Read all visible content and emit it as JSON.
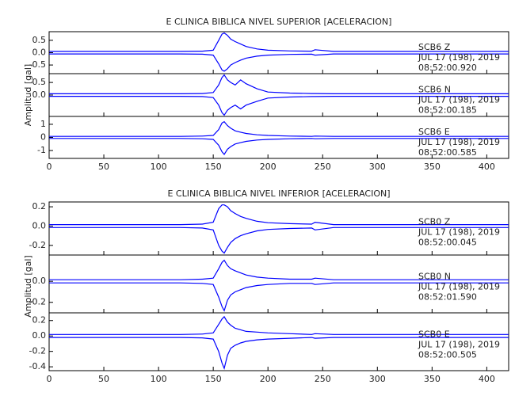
{
  "chart_data": [
    {
      "type": "seismogram",
      "title": "E CLINICA BIBLICA NIVEL SUPERIOR [ACELERACION]",
      "ylabel": "Amplitud [gal]",
      "xlim": [
        0,
        420
      ],
      "xticks": [
        0,
        50,
        100,
        150,
        200,
        250,
        300,
        350,
        400
      ],
      "panels": [
        {
          "station": "SCB6   Z",
          "date": "JUL 17 (198), 2019",
          "time": "08:52:00.920",
          "color": "#0000ff",
          "ylim": [
            -0.85,
            0.85
          ],
          "yticks": [
            0.5,
            {
              "value": 0,
              "label": "0.0"
            },
            -0.5
          ],
          "x": [
            0,
            20,
            40,
            60,
            80,
            100,
            120,
            140,
            150,
            155,
            158,
            160,
            163,
            166,
            170,
            175,
            180,
            190,
            200,
            220,
            240,
            243,
            260,
            300,
            340,
            380,
            420
          ],
          "max": [
            0.05,
            0.05,
            0.05,
            0.05,
            0.05,
            0.05,
            0.05,
            0.06,
            0.1,
            0.5,
            0.75,
            0.8,
            0.7,
            0.55,
            0.45,
            0.35,
            0.25,
            0.15,
            0.1,
            0.07,
            0.06,
            0.12,
            0.05,
            0.05,
            0.05,
            0.05,
            0.05
          ],
          "min": [
            -0.05,
            -0.05,
            -0.05,
            -0.05,
            -0.05,
            -0.05,
            -0.05,
            -0.06,
            -0.1,
            -0.45,
            -0.7,
            -0.75,
            -0.65,
            -0.5,
            -0.4,
            -0.3,
            -0.22,
            -0.14,
            -0.1,
            -0.07,
            -0.06,
            -0.1,
            -0.05,
            -0.05,
            -0.05,
            -0.05,
            -0.05
          ]
        },
        {
          "station": "SCB6   N",
          "date": "JUL 17 (198), 2019",
          "time": "08:52:00.185",
          "color": "#0000ff",
          "ylim": [
            -0.85,
            0.85
          ],
          "yticks": [
            0.5,
            {
              "value": 0,
              "label": "0.0"
            }
          ],
          "x": [
            0,
            20,
            40,
            60,
            80,
            100,
            120,
            140,
            150,
            155,
            158,
            160,
            163,
            166,
            170,
            175,
            180,
            190,
            200,
            220,
            240,
            243,
            260,
            300,
            340,
            380,
            420
          ],
          "max": [
            0.05,
            0.05,
            0.05,
            0.05,
            0.05,
            0.05,
            0.05,
            0.06,
            0.1,
            0.4,
            0.7,
            0.8,
            0.6,
            0.5,
            0.4,
            0.6,
            0.45,
            0.25,
            0.12,
            0.08,
            0.06,
            0.06,
            0.05,
            0.05,
            0.05,
            0.05,
            0.05
          ],
          "min": [
            -0.05,
            -0.05,
            -0.05,
            -0.05,
            -0.05,
            -0.05,
            -0.05,
            -0.06,
            -0.1,
            -0.4,
            -0.7,
            -0.8,
            -0.6,
            -0.5,
            -0.4,
            -0.55,
            -0.4,
            -0.25,
            -0.12,
            -0.08,
            -0.06,
            -0.06,
            -0.05,
            -0.05,
            -0.05,
            -0.05,
            -0.05
          ]
        },
        {
          "station": "SCB6   E",
          "date": "JUL 17 (198), 2019",
          "time": "08:52:00.585",
          "color": "#0000ff",
          "ylim": [
            -1.6,
            1.6
          ],
          "yticks": [
            1,
            0,
            -1
          ],
          "x": [
            0,
            20,
            40,
            60,
            80,
            100,
            120,
            140,
            150,
            155,
            158,
            160,
            163,
            166,
            170,
            175,
            180,
            190,
            200,
            220,
            240,
            243,
            260,
            300,
            340,
            380,
            420
          ],
          "max": [
            0.08,
            0.08,
            0.08,
            0.08,
            0.08,
            0.08,
            0.08,
            0.1,
            0.15,
            0.6,
            1.1,
            1.2,
            0.9,
            0.7,
            0.5,
            0.4,
            0.3,
            0.2,
            0.15,
            0.1,
            0.08,
            0.1,
            0.08,
            0.08,
            0.08,
            0.08,
            0.08
          ],
          "min": [
            -0.08,
            -0.08,
            -0.08,
            -0.08,
            -0.08,
            -0.08,
            -0.08,
            -0.1,
            -0.15,
            -0.6,
            -1.1,
            -1.3,
            -0.9,
            -0.7,
            -0.5,
            -0.4,
            -0.3,
            -0.2,
            -0.15,
            -0.1,
            -0.08,
            -0.1,
            -0.08,
            -0.08,
            -0.08,
            -0.08,
            -0.08
          ]
        }
      ]
    },
    {
      "type": "seismogram",
      "title": "E CLINICA BIBLICA NIVEL INFERIOR [ACELERACION]",
      "ylabel": "Amplitud [gal]",
      "xlim": [
        0,
        420
      ],
      "xticks": [
        0,
        50,
        100,
        150,
        200,
        250,
        300,
        350,
        400
      ],
      "panels": [
        {
          "station": "SCB0   Z",
          "date": "JUL 17 (198), 2019",
          "time": "08:52:00.045",
          "color": "#0000ff",
          "ylim": [
            -0.3,
            0.25
          ],
          "yticks": [
            0.2,
            {
              "value": 0,
              "label": "0.0"
            },
            -0.2
          ],
          "x": [
            0,
            20,
            40,
            60,
            80,
            100,
            120,
            140,
            150,
            155,
            158,
            160,
            163,
            166,
            170,
            175,
            180,
            190,
            200,
            220,
            240,
            243,
            260,
            300,
            340,
            380,
            420
          ],
          "max": [
            0.015,
            0.015,
            0.015,
            0.015,
            0.015,
            0.015,
            0.015,
            0.02,
            0.04,
            0.18,
            0.22,
            0.22,
            0.2,
            0.16,
            0.13,
            0.1,
            0.08,
            0.05,
            0.035,
            0.025,
            0.02,
            0.04,
            0.015,
            0.015,
            0.015,
            0.015,
            0.015
          ],
          "min": [
            -0.015,
            -0.015,
            -0.015,
            -0.015,
            -0.015,
            -0.015,
            -0.015,
            -0.02,
            -0.04,
            -0.2,
            -0.26,
            -0.28,
            -0.22,
            -0.17,
            -0.13,
            -0.1,
            -0.08,
            -0.05,
            -0.035,
            -0.025,
            -0.02,
            -0.04,
            -0.015,
            -0.015,
            -0.015,
            -0.015,
            -0.015
          ]
        },
        {
          "station": "SCB0   N",
          "date": "JUL 17 (198), 2019",
          "time": "08:52:01.590",
          "color": "#0000ff",
          "ylim": [
            -0.3,
            0.25
          ],
          "yticks": [
            {
              "value": 0,
              "label": "0.0"
            },
            -0.2
          ],
          "x": [
            0,
            20,
            40,
            60,
            80,
            100,
            120,
            140,
            150,
            155,
            158,
            160,
            163,
            166,
            170,
            175,
            180,
            190,
            200,
            220,
            240,
            243,
            260,
            300,
            340,
            380,
            420
          ],
          "max": [
            0.015,
            0.015,
            0.015,
            0.015,
            0.015,
            0.015,
            0.015,
            0.02,
            0.03,
            0.12,
            0.18,
            0.2,
            0.15,
            0.12,
            0.1,
            0.08,
            0.06,
            0.04,
            0.03,
            0.02,
            0.02,
            0.03,
            0.015,
            0.015,
            0.015,
            0.015,
            0.015
          ],
          "min": [
            -0.015,
            -0.015,
            -0.015,
            -0.015,
            -0.015,
            -0.015,
            -0.015,
            -0.02,
            -0.03,
            -0.15,
            -0.24,
            -0.28,
            -0.18,
            -0.13,
            -0.1,
            -0.08,
            -0.06,
            -0.04,
            -0.03,
            -0.02,
            -0.02,
            -0.03,
            -0.015,
            -0.015,
            -0.015,
            -0.015,
            -0.015
          ]
        },
        {
          "station": "SCB0   E",
          "date": "JUL 17 (198), 2019",
          "time": "08:52:00.505",
          "color": "#0000ff",
          "ylim": [
            -0.45,
            0.3
          ],
          "yticks": [
            0.2,
            {
              "value": 0,
              "label": "0.0"
            },
            -0.2,
            -0.4
          ],
          "x": [
            0,
            20,
            40,
            60,
            80,
            100,
            120,
            140,
            150,
            155,
            158,
            160,
            163,
            166,
            170,
            175,
            180,
            190,
            200,
            220,
            240,
            243,
            260,
            300,
            340,
            380,
            420
          ],
          "max": [
            0.02,
            0.02,
            0.02,
            0.02,
            0.02,
            0.02,
            0.02,
            0.025,
            0.04,
            0.15,
            0.22,
            0.25,
            0.18,
            0.14,
            0.1,
            0.08,
            0.06,
            0.05,
            0.04,
            0.03,
            0.02,
            0.03,
            0.02,
            0.02,
            0.02,
            0.02,
            0.02
          ],
          "min": [
            -0.02,
            -0.02,
            -0.02,
            -0.02,
            -0.02,
            -0.02,
            -0.02,
            -0.025,
            -0.04,
            -0.2,
            -0.35,
            -0.42,
            -0.25,
            -0.16,
            -0.12,
            -0.09,
            -0.07,
            -0.05,
            -0.04,
            -0.03,
            -0.02,
            -0.03,
            -0.02,
            -0.02,
            -0.02,
            -0.02,
            -0.02
          ]
        }
      ]
    }
  ]
}
